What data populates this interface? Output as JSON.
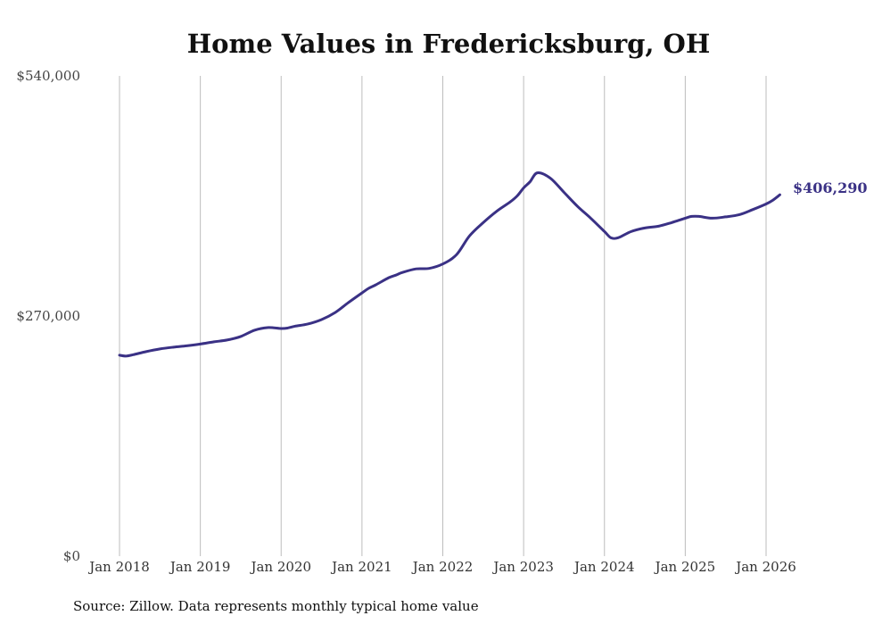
{
  "chart_data": {
    "type": "line",
    "title": "Home Values in Fredericksburg, OH",
    "source": "Source: Zillow. Data represents monthly typical home value",
    "xlabel": "",
    "ylabel": "",
    "ylim": [
      0,
      540000
    ],
    "y_ticks": [
      {
        "value": 0,
        "label": "$0"
      },
      {
        "value": 270000,
        "label": "$270,000"
      },
      {
        "value": 540000,
        "label": "$540,000"
      }
    ],
    "x_ticks": [
      {
        "value": 2018,
        "label": "Jan 2018"
      },
      {
        "value": 2019,
        "label": "Jan 2019"
      },
      {
        "value": 2020,
        "label": "Jan 2020"
      },
      {
        "value": 2021,
        "label": "Jan 2021"
      },
      {
        "value": 2022,
        "label": "Jan 2022"
      },
      {
        "value": 2023,
        "label": "Jan 2023"
      },
      {
        "value": 2024,
        "label": "Jan 2024"
      },
      {
        "value": 2025,
        "label": "Jan 2025"
      },
      {
        "value": 2026,
        "label": "Jan 2026"
      }
    ],
    "xlim": [
      2018,
      2026.17
    ],
    "grid": "vertical",
    "series": [
      {
        "name": "Typical home value",
        "color": "#3a3185",
        "end_label": "$406,290",
        "x": [
          2018.0,
          2018.08,
          2018.17,
          2018.33,
          2018.5,
          2018.67,
          2018.83,
          2019.0,
          2019.17,
          2019.33,
          2019.5,
          2019.67,
          2019.83,
          2020.0,
          2020.08,
          2020.17,
          2020.33,
          2020.5,
          2020.67,
          2020.83,
          2021.0,
          2021.08,
          2021.17,
          2021.33,
          2021.42,
          2021.5,
          2021.67,
          2021.83,
          2022.0,
          2022.17,
          2022.33,
          2022.5,
          2022.67,
          2022.83,
          2022.92,
          2023.0,
          2023.08,
          2023.17,
          2023.33,
          2023.5,
          2023.67,
          2023.83,
          2024.0,
          2024.08,
          2024.17,
          2024.33,
          2024.5,
          2024.67,
          2024.83,
          2025.0,
          2025.08,
          2025.17,
          2025.33,
          2025.5,
          2025.67,
          2025.83,
          2026.0,
          2026.08,
          2026.17
        ],
        "values": [
          226000,
          225000,
          226500,
          230000,
          233000,
          235000,
          236500,
          238500,
          241000,
          243000,
          247000,
          254000,
          257000,
          256000,
          256500,
          258500,
          261000,
          266000,
          274000,
          285000,
          296000,
          301000,
          305000,
          313000,
          316000,
          319000,
          323000,
          323500,
          328500,
          339000,
          360000,
          375000,
          388000,
          398000,
          405000,
          414000,
          421000,
          431000,
          425000,
          409000,
          393000,
          380000,
          365000,
          358000,
          358000,
          365000,
          369000,
          371000,
          375000,
          380000,
          382000,
          382000,
          380000,
          381500,
          384000,
          389500,
          396000,
          400000,
          406290
        ]
      }
    ]
  }
}
